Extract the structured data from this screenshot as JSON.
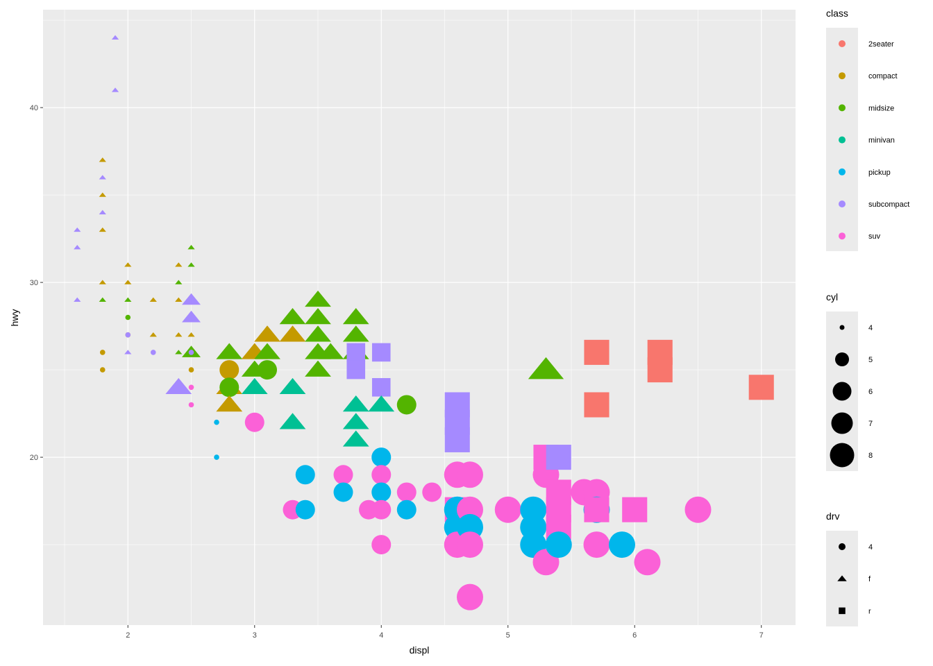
{
  "chart_data": {
    "type": "scatter",
    "title": "",
    "xlabel": "displ",
    "ylabel": "hwy",
    "xlim": [
      1.33,
      7.27
    ],
    "ylim": [
      10.4,
      45.6
    ],
    "x_ticks": [
      2,
      3,
      4,
      5,
      6,
      7
    ],
    "y_ticks": [
      20,
      30,
      40
    ],
    "grid": true,
    "legend_position": "right",
    "colors": {
      "panel": "#EBEBEB",
      "grid": "#FFFFFF",
      "legend_key": "#EBEBEB"
    },
    "legends": {
      "class": {
        "title": "class",
        "entries": [
          {
            "label": "2seater",
            "color": "#F8766D"
          },
          {
            "label": "compact",
            "color": "#C49A00"
          },
          {
            "label": "midsize",
            "color": "#53B400"
          },
          {
            "label": "minivan",
            "color": "#00C094"
          },
          {
            "label": "pickup",
            "color": "#00B6EB"
          },
          {
            "label": "subcompact",
            "color": "#A58AFF"
          },
          {
            "label": "suv",
            "color": "#FB61D7"
          }
        ]
      },
      "cyl": {
        "title": "cyl",
        "entries": [
          {
            "label": "4",
            "value": 4
          },
          {
            "label": "5",
            "value": 5
          },
          {
            "label": "6",
            "value": 6
          },
          {
            "label": "7",
            "value": 7
          },
          {
            "label": "8",
            "value": 8
          }
        ]
      },
      "drv": {
        "title": "drv",
        "entries": [
          {
            "label": "4",
            "shape": "circle"
          },
          {
            "label": "f",
            "shape": "triangle"
          },
          {
            "label": "r",
            "shape": "square"
          }
        ]
      }
    },
    "points": [
      [
        1.6,
        33,
        "subcompact",
        4,
        "f"
      ],
      [
        1.6,
        32,
        "subcompact",
        4,
        "f"
      ],
      [
        1.6,
        29,
        "subcompact",
        4,
        "f"
      ],
      [
        1.9,
        44,
        "subcompact",
        4,
        "f"
      ],
      [
        1.9,
        41,
        "subcompact",
        4,
        "f"
      ],
      [
        1.8,
        37,
        "compact",
        4,
        "f"
      ],
      [
        1.8,
        35,
        "compact",
        4,
        "f"
      ],
      [
        1.8,
        33,
        "compact",
        4,
        "f"
      ],
      [
        1.8,
        30,
        "compact",
        4,
        "f"
      ],
      [
        1.8,
        36,
        "subcompact",
        4,
        "f"
      ],
      [
        1.8,
        34,
        "subcompact",
        4,
        "f"
      ],
      [
        1.8,
        29,
        "midsize",
        4,
        "f"
      ],
      [
        1.8,
        26,
        "compact",
        4,
        "4"
      ],
      [
        1.8,
        25,
        "compact",
        4,
        "4"
      ],
      [
        2.0,
        31,
        "compact",
        4,
        "f"
      ],
      [
        2.0,
        30,
        "compact",
        4,
        "f"
      ],
      [
        2.0,
        29,
        "midsize",
        4,
        "f"
      ],
      [
        2.0,
        28,
        "midsize",
        4,
        "4"
      ],
      [
        2.0,
        27,
        "compact",
        4,
        "4"
      ],
      [
        2.0,
        27,
        "subcompact",
        4,
        "4"
      ],
      [
        2.0,
        26,
        "subcompact",
        4,
        "f"
      ],
      [
        2.2,
        29,
        "compact",
        4,
        "f"
      ],
      [
        2.2,
        27,
        "compact",
        4,
        "f"
      ],
      [
        2.2,
        26,
        "subcompact",
        4,
        "4"
      ],
      [
        2.4,
        31,
        "compact",
        4,
        "f"
      ],
      [
        2.4,
        30,
        "midsize",
        4,
        "f"
      ],
      [
        2.4,
        29,
        "compact",
        4,
        "f"
      ],
      [
        2.4,
        27,
        "compact",
        4,
        "f"
      ],
      [
        2.4,
        26,
        "midsize",
        4,
        "f"
      ],
      [
        2.4,
        24,
        "minivan",
        4,
        "f"
      ],
      [
        2.5,
        32,
        "midsize",
        4,
        "f"
      ],
      [
        2.5,
        31,
        "midsize",
        4,
        "f"
      ],
      [
        2.5,
        29,
        "subcompact",
        5,
        "f"
      ],
      [
        2.5,
        28,
        "subcompact",
        5,
        "f"
      ],
      [
        2.5,
        27,
        "compact",
        4,
        "f"
      ],
      [
        2.5,
        26,
        "midsize",
        5,
        "f"
      ],
      [
        2.5,
        26,
        "subcompact",
        4,
        "4"
      ],
      [
        2.5,
        25,
        "compact",
        4,
        "4"
      ],
      [
        2.5,
        24,
        "suv",
        4,
        "4"
      ],
      [
        2.5,
        23,
        "suv",
        4,
        "4"
      ],
      [
        2.4,
        24,
        "subcompact",
        6,
        "f"
      ],
      [
        2.7,
        22,
        "pickup",
        4,
        "4"
      ],
      [
        2.7,
        20,
        "pickup",
        4,
        "4"
      ],
      [
        2.8,
        26,
        "midsize",
        6,
        "f"
      ],
      [
        2.8,
        25,
        "compact",
        6,
        "4"
      ],
      [
        2.8,
        24,
        "compact",
        6,
        "f"
      ],
      [
        2.8,
        24,
        "midsize",
        6,
        "4"
      ],
      [
        2.8,
        23,
        "compact",
        6,
        "f"
      ],
      [
        3.0,
        26,
        "compact",
        6,
        "f"
      ],
      [
        3.0,
        25,
        "midsize",
        6,
        "f"
      ],
      [
        3.0,
        24,
        "minivan",
        6,
        "f"
      ],
      [
        3.0,
        22,
        "suv",
        6,
        "4"
      ],
      [
        3.1,
        27,
        "compact",
        6,
        "f"
      ],
      [
        3.1,
        26,
        "midsize",
        6,
        "f"
      ],
      [
        3.1,
        25,
        "midsize",
        6,
        "4"
      ],
      [
        3.3,
        28,
        "midsize",
        6,
        "f"
      ],
      [
        3.3,
        27,
        "compact",
        6,
        "f"
      ],
      [
        3.3,
        24,
        "minivan",
        6,
        "f"
      ],
      [
        3.3,
        22,
        "minivan",
        6,
        "f"
      ],
      [
        3.3,
        17,
        "minivan",
        4,
        "f"
      ],
      [
        3.3,
        17,
        "suv",
        6,
        "4"
      ],
      [
        3.4,
        19,
        "pickup",
        6,
        "4"
      ],
      [
        3.4,
        17,
        "pickup",
        6,
        "4"
      ],
      [
        3.5,
        29,
        "midsize",
        6,
        "f"
      ],
      [
        3.5,
        28,
        "midsize",
        6,
        "f"
      ],
      [
        3.5,
        27,
        "midsize",
        6,
        "f"
      ],
      [
        3.5,
        26,
        "midsize",
        6,
        "f"
      ],
      [
        3.5,
        25,
        "midsize",
        6,
        "f"
      ],
      [
        3.6,
        26,
        "midsize",
        6,
        "f"
      ],
      [
        3.7,
        19,
        "suv",
        6,
        "4"
      ],
      [
        3.7,
        18,
        "pickup",
        6,
        "4"
      ],
      [
        3.8,
        28,
        "midsize",
        6,
        "f"
      ],
      [
        3.8,
        27,
        "midsize",
        6,
        "f"
      ],
      [
        3.8,
        26,
        "midsize",
        6,
        "f"
      ],
      [
        3.8,
        26,
        "subcompact",
        6,
        "r"
      ],
      [
        3.8,
        25,
        "subcompact",
        6,
        "r"
      ],
      [
        3.8,
        23,
        "minivan",
        6,
        "f"
      ],
      [
        3.8,
        22,
        "minivan",
        6,
        "f"
      ],
      [
        3.8,
        21,
        "minivan",
        6,
        "f"
      ],
      [
        3.9,
        17,
        "suv",
        6,
        "4"
      ],
      [
        4.0,
        26,
        "subcompact",
        6,
        "r"
      ],
      [
        4.0,
        24,
        "subcompact",
        6,
        "r"
      ],
      [
        4.0,
        23,
        "minivan",
        6,
        "f"
      ],
      [
        4.0,
        20,
        "pickup",
        6,
        "4"
      ],
      [
        4.0,
        19,
        "suv",
        6,
        "4"
      ],
      [
        4.0,
        18,
        "pickup",
        6,
        "4"
      ],
      [
        4.0,
        17,
        "suv",
        6,
        "4"
      ],
      [
        4.0,
        15,
        "suv",
        6,
        "4"
      ],
      [
        4.2,
        23,
        "midsize",
        6,
        "4"
      ],
      [
        4.2,
        18,
        "suv",
        6,
        "4"
      ],
      [
        4.2,
        17,
        "pickup",
        6,
        "4"
      ],
      [
        4.4,
        18,
        "suv",
        6,
        "4"
      ],
      [
        4.6,
        23,
        "subcompact",
        8,
        "r"
      ],
      [
        4.6,
        22,
        "subcompact",
        8,
        "r"
      ],
      [
        4.6,
        21,
        "subcompact",
        8,
        "r"
      ],
      [
        4.6,
        19,
        "suv",
        8,
        "4"
      ],
      [
        4.6,
        17,
        "suv",
        8,
        "r"
      ],
      [
        4.6,
        17,
        "pickup",
        8,
        "4"
      ],
      [
        4.6,
        16,
        "pickup",
        8,
        "4"
      ],
      [
        4.6,
        15,
        "suv",
        8,
        "4"
      ],
      [
        4.7,
        19,
        "suv",
        8,
        "4"
      ],
      [
        4.7,
        17,
        "suv",
        8,
        "4"
      ],
      [
        4.7,
        16,
        "pickup",
        8,
        "4"
      ],
      [
        4.7,
        15,
        "suv",
        8,
        "4"
      ],
      [
        4.7,
        12,
        "suv",
        8,
        "4"
      ],
      [
        5.0,
        17,
        "suv",
        8,
        "4"
      ],
      [
        5.2,
        17,
        "pickup",
        8,
        "4"
      ],
      [
        5.2,
        16,
        "pickup",
        8,
        "4"
      ],
      [
        5.2,
        15,
        "pickup",
        8,
        "4"
      ],
      [
        5.3,
        20,
        "suv",
        8,
        "r"
      ],
      [
        5.3,
        19,
        "suv",
        8,
        "4"
      ],
      [
        5.3,
        14,
        "suv",
        8,
        "4"
      ],
      [
        5.3,
        25,
        "midsize",
        8,
        "f"
      ],
      [
        5.4,
        20,
        "subcompact",
        8,
        "r"
      ],
      [
        5.4,
        18,
        "suv",
        8,
        "r"
      ],
      [
        5.4,
        17,
        "suv",
        8,
        "r"
      ],
      [
        5.4,
        16,
        "suv",
        8,
        "r"
      ],
      [
        5.4,
        15,
        "pickup",
        8,
        "4"
      ],
      [
        5.6,
        18,
        "suv",
        8,
        "4"
      ],
      [
        5.7,
        26,
        "2seater",
        8,
        "r"
      ],
      [
        5.7,
        23,
        "2seater",
        8,
        "r"
      ],
      [
        5.7,
        18,
        "suv",
        8,
        "4"
      ],
      [
        5.7,
        17,
        "pickup",
        8,
        "4"
      ],
      [
        5.7,
        17,
        "suv",
        8,
        "r"
      ],
      [
        5.7,
        15,
        "suv",
        8,
        "4"
      ],
      [
        5.9,
        15,
        "pickup",
        8,
        "4"
      ],
      [
        6.0,
        17,
        "suv",
        8,
        "r"
      ],
      [
        6.1,
        14,
        "suv",
        8,
        "4"
      ],
      [
        6.2,
        26,
        "2seater",
        8,
        "r"
      ],
      [
        6.2,
        25,
        "2seater",
        8,
        "r"
      ],
      [
        6.5,
        17,
        "suv",
        8,
        "4"
      ],
      [
        7.0,
        24,
        "2seater",
        8,
        "r"
      ]
    ]
  }
}
